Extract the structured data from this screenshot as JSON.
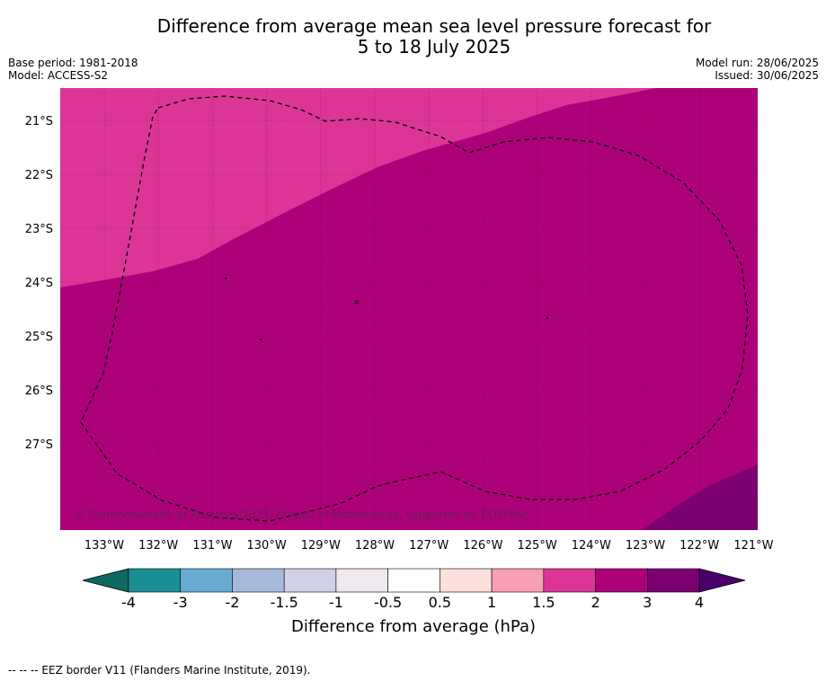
{
  "title_line1": "Difference from average mean sea level pressure forecast for",
  "title_line2": "5 to 18 July 2025",
  "base_period": "Base period: 1981-2018",
  "model": "Model: ACCESS-S2",
  "model_run": "Model run: 28/06/2025",
  "issued": "Issued: 30/06/2025",
  "copyright": "© Commonwealth of Australia 2025, Bureau of Meteorology, supported by COSPPac",
  "footer_note": "--  --  -- EEZ border V11 (Flanders Marine Institute, 2019).",
  "lat_labels": [
    "21°S",
    "22°S",
    "23°S",
    "24°S",
    "25°S",
    "26°S",
    "27°S"
  ],
  "lon_labels": [
    "133°W",
    "132°W",
    "131°W",
    "130°W",
    "129°W",
    "128°W",
    "127°W",
    "126°W",
    "125°W",
    "124°W",
    "123°W",
    "122°W",
    "121°W"
  ],
  "colorbar": {
    "label": "Difference from average (hPa)",
    "ticks": [
      "-4",
      "-3",
      "-2",
      "-1.5",
      "-1",
      "-0.5",
      "0.5",
      "1",
      "1.5",
      "2",
      "3",
      "4"
    ],
    "colors": [
      "#1b8f96",
      "#68abd2",
      "#a7b9d9",
      "#d1d1e5",
      "#efe9ef",
      "#ffffff",
      "#fde0dc",
      "#f99fb5",
      "#dc3597",
      "#ad0179",
      "#7b0173"
    ],
    "low_extend_color": "#0d6a60",
    "high_extend_color": "#4a006a"
  },
  "map_colors": {
    "band_1_5_to_2": "#dc3597",
    "band_2_to_3": "#ad0179",
    "band_3_to_4": "#7b0173"
  }
}
